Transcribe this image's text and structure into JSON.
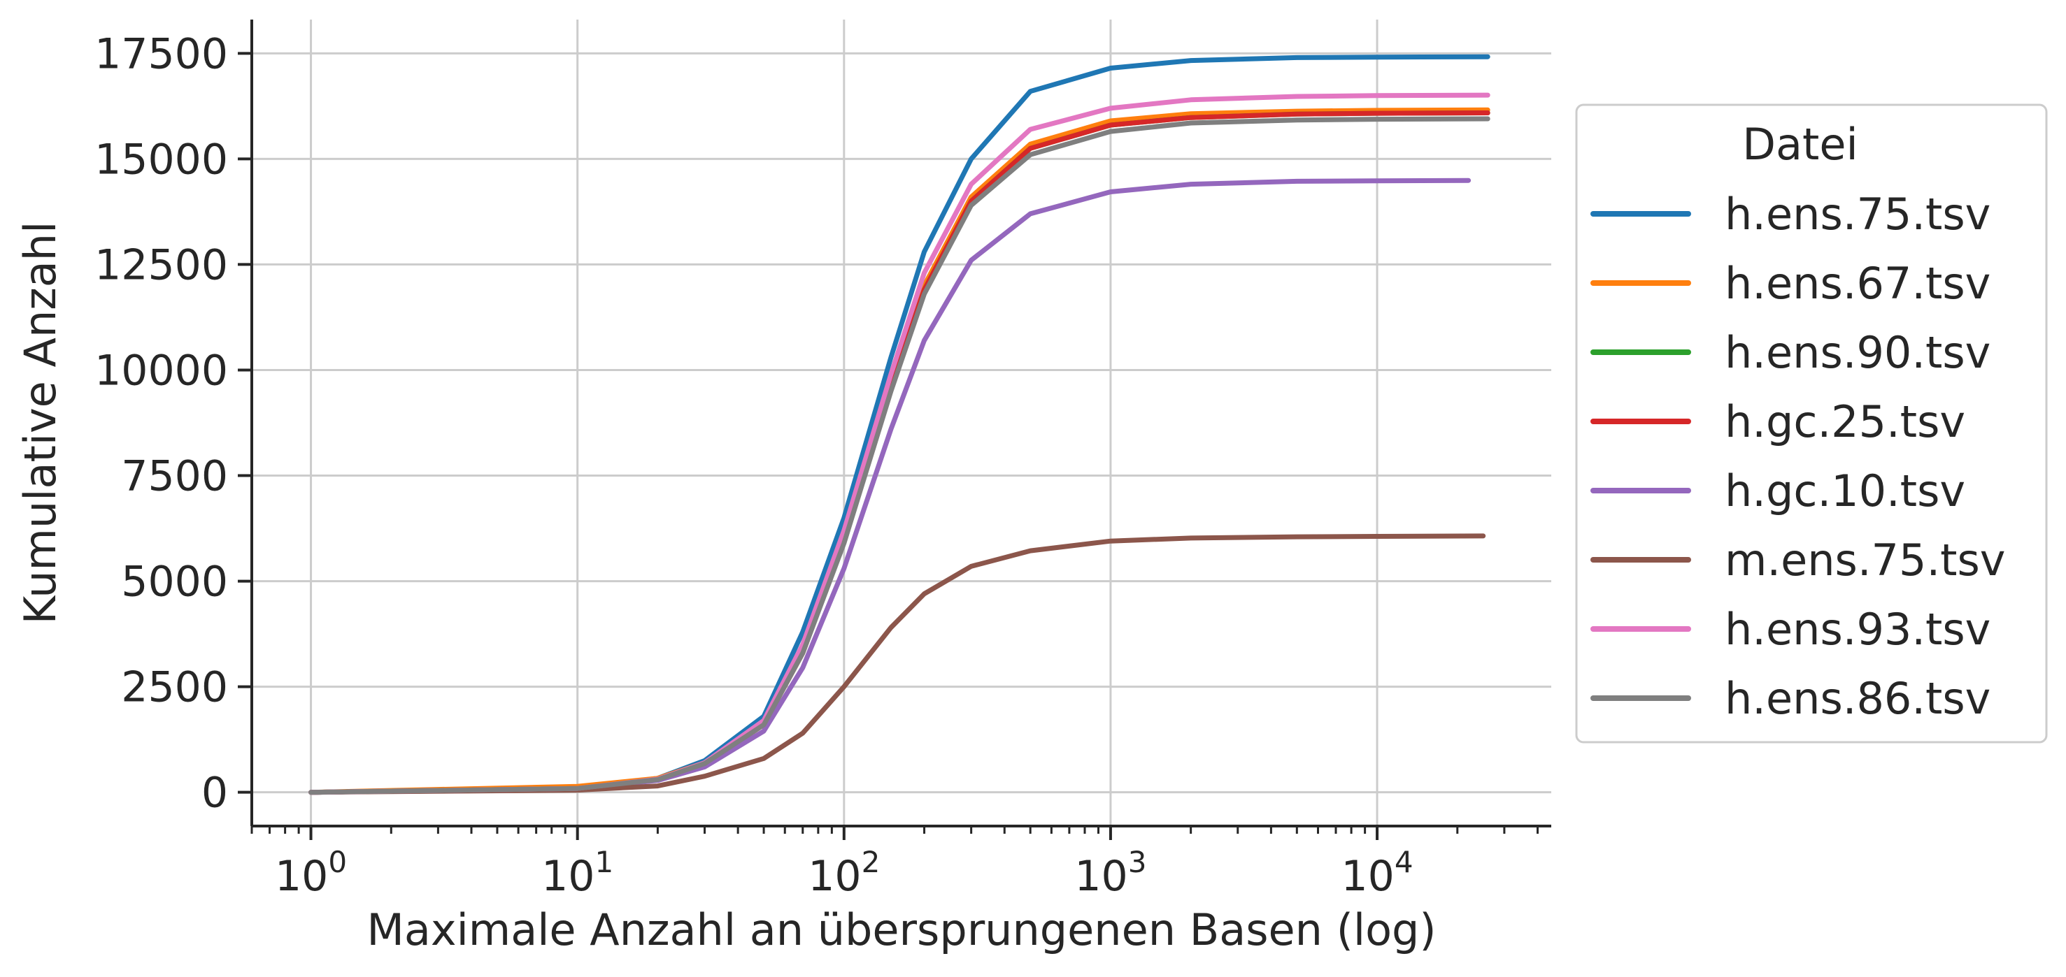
{
  "chart_data": {
    "type": "line",
    "xlabel": "Maximale Anzahl an übersprungenen Basen (log)",
    "ylabel": "Kumulative Anzahl",
    "x_scale": "log",
    "xlim": [
      0.6,
      45000
    ],
    "ylim": [
      -800,
      18300
    ],
    "x_ticks": [
      1,
      10,
      100,
      1000,
      10000
    ],
    "x_tick_labels": [
      {
        "base": "10",
        "exp": "0"
      },
      {
        "base": "10",
        "exp": "1"
      },
      {
        "base": "10",
        "exp": "2"
      },
      {
        "base": "10",
        "exp": "3"
      },
      {
        "base": "10",
        "exp": "4"
      }
    ],
    "y_ticks": [
      0,
      2500,
      5000,
      7500,
      10000,
      12500,
      15000,
      17500
    ],
    "y_tick_labels": [
      "0",
      "2500",
      "5000",
      "7500",
      "10000",
      "12500",
      "15000",
      "17500"
    ],
    "grid": true,
    "legend": {
      "title": "Datei",
      "placement": "right, outside"
    },
    "series": [
      {
        "name": "h.ens.75.tsv",
        "color": "#1f77b4",
        "x": [
          1,
          10,
          20,
          30,
          50,
          70,
          100,
          150,
          200,
          300,
          500,
          1000,
          2000,
          5000,
          10000,
          26000
        ],
        "y": [
          0,
          95,
          330,
          750,
          1800,
          3800,
          6500,
          10300,
          12800,
          15000,
          16600,
          17150,
          17330,
          17400,
          17410,
          17420
        ]
      },
      {
        "name": "h.ens.67.tsv",
        "color": "#ff7f0e",
        "x": [
          1,
          10,
          20,
          30,
          50,
          70,
          100,
          150,
          200,
          300,
          500,
          1000,
          2000,
          5000,
          10000,
          26000
        ],
        "y": [
          0,
          140,
          330,
          700,
          1650,
          3400,
          6050,
          9700,
          12000,
          14100,
          15350,
          15900,
          16070,
          16130,
          16150,
          16160
        ]
      },
      {
        "name": "h.ens.90.tsv",
        "color": "#2ca02c",
        "x": [
          1,
          10,
          20,
          30,
          50,
          70,
          100,
          150,
          200,
          300,
          500,
          1000,
          2000,
          5000,
          10000,
          26000
        ],
        "y": [
          0,
          90,
          300,
          680,
          1600,
          3300,
          5950,
          9600,
          11900,
          14000,
          15250,
          15800,
          15980,
          16060,
          16080,
          16090
        ]
      },
      {
        "name": "h.gc.25.tsv",
        "color": "#d62728",
        "x": [
          1,
          10,
          20,
          30,
          50,
          70,
          100,
          150,
          200,
          300,
          500,
          1000,
          2000,
          5000,
          10000,
          26000
        ],
        "y": [
          0,
          90,
          300,
          680,
          1600,
          3300,
          5950,
          9600,
          11900,
          14000,
          15250,
          15800,
          15980,
          16060,
          16080,
          16090
        ]
      },
      {
        "name": "h.gc.10.tsv",
        "color": "#9467bd",
        "x": [
          1,
          10,
          20,
          30,
          50,
          70,
          100,
          150,
          200,
          300,
          500,
          1000,
          2000,
          5000,
          10000,
          22000
        ],
        "y": [
          0,
          85,
          280,
          600,
          1450,
          2950,
          5300,
          8600,
          10700,
          12600,
          13700,
          14220,
          14400,
          14470,
          14480,
          14490
        ]
      },
      {
        "name": "m.ens.75.tsv",
        "color": "#8c564b",
        "x": [
          1,
          10,
          20,
          30,
          50,
          70,
          100,
          150,
          200,
          300,
          500,
          1000,
          2000,
          5000,
          10000,
          25000
        ],
        "y": [
          0,
          50,
          150,
          380,
          800,
          1400,
          2500,
          3900,
          4700,
          5350,
          5720,
          5950,
          6020,
          6050,
          6060,
          6070
        ]
      },
      {
        "name": "h.ens.93.tsv",
        "color": "#e377c2",
        "x": [
          1,
          10,
          20,
          30,
          50,
          70,
          100,
          150,
          200,
          300,
          500,
          1000,
          2000,
          5000,
          10000,
          26000
        ],
        "y": [
          0,
          90,
          310,
          700,
          1700,
          3500,
          6200,
          9900,
          12300,
          14400,
          15700,
          16200,
          16400,
          16480,
          16500,
          16510
        ]
      },
      {
        "name": "h.ens.86.tsv",
        "color": "#7f7f7f",
        "x": [
          1,
          10,
          20,
          30,
          50,
          70,
          100,
          150,
          200,
          300,
          500,
          1000,
          2000,
          5000,
          10000,
          26000
        ],
        "y": [
          0,
          90,
          300,
          680,
          1600,
          3300,
          5900,
          9500,
          11800,
          13900,
          15100,
          15650,
          15850,
          15920,
          15940,
          15950
        ]
      }
    ]
  }
}
